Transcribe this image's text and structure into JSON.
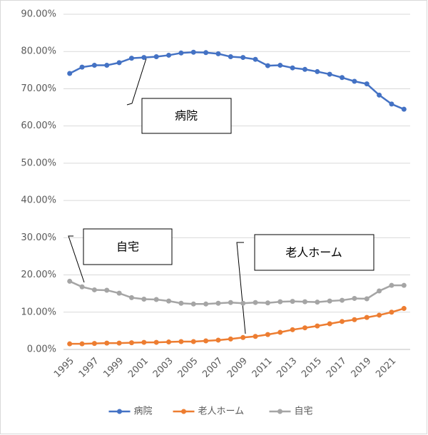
{
  "chart_data": {
    "type": "line",
    "categories": [
      "1995",
      null,
      "1997",
      null,
      "1999",
      null,
      "2001",
      null,
      "2003",
      null,
      "2005",
      null,
      "2007",
      null,
      "2009",
      null,
      "2011",
      null,
      "2013",
      null,
      "2015",
      null,
      "2017",
      null,
      "2019",
      null,
      "2021",
      null
    ],
    "series": [
      {
        "name": "病院",
        "color": "#4472c4",
        "values": [
          74.1,
          75.8,
          76.3,
          76.3,
          77.0,
          78.2,
          78.4,
          78.6,
          79.0,
          79.6,
          79.8,
          79.7,
          79.4,
          78.6,
          78.4,
          77.9,
          76.2,
          76.3,
          75.6,
          75.2,
          74.6,
          73.9,
          73.0,
          72.0,
          71.3,
          68.3,
          65.9,
          64.5
        ]
      },
      {
        "name": "老人ホーム",
        "color": "#ed7d31",
        "values": [
          1.5,
          1.5,
          1.6,
          1.7,
          1.7,
          1.8,
          1.9,
          1.9,
          2.0,
          2.1,
          2.1,
          2.3,
          2.5,
          2.8,
          3.2,
          3.5,
          4.0,
          4.6,
          5.3,
          5.8,
          6.3,
          6.9,
          7.5,
          8.0,
          8.6,
          9.2,
          10.0,
          11.0
        ]
      },
      {
        "name": "自宅",
        "color": "#a5a5a5",
        "values": [
          18.3,
          16.8,
          16.0,
          15.9,
          15.1,
          13.9,
          13.5,
          13.4,
          13.0,
          12.4,
          12.2,
          12.2,
          12.4,
          12.6,
          12.4,
          12.6,
          12.5,
          12.8,
          12.9,
          12.8,
          12.7,
          13.0,
          13.2,
          13.7,
          13.6,
          15.7,
          17.2,
          17.2
        ]
      }
    ],
    "ylim": [
      0,
      90
    ],
    "yticks": [
      {
        "value": 0,
        "label": "0.00%"
      },
      {
        "value": 10,
        "label": "10.00%"
      },
      {
        "value": 20,
        "label": "20.00%"
      },
      {
        "value": 30,
        "label": "30.00%"
      },
      {
        "value": 40,
        "label": "40.00%"
      },
      {
        "value": 50,
        "label": "50.00%"
      },
      {
        "value": 60,
        "label": "60.00%"
      },
      {
        "value": 70,
        "label": "70.00%"
      },
      {
        "value": 80,
        "label": "80.00%"
      },
      {
        "value": 90,
        "label": "90.00%"
      }
    ],
    "grid": true,
    "legend": "bottom",
    "annotations": [
      "病院",
      "自宅",
      "老人ホーム"
    ]
  }
}
